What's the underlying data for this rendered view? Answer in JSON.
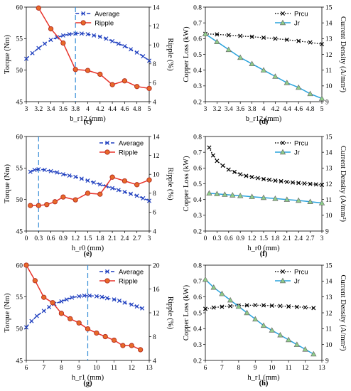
{
  "chart_data": [
    {
      "type": "line",
      "caption": "(c)",
      "xlabel": "b_r12 (mm)",
      "ylabel": "Torque (Nm)",
      "y2label": "Ripple (%)",
      "xlim": [
        3,
        5
      ],
      "ylim": [
        45,
        60
      ],
      "y2lim": [
        4,
        14
      ],
      "xticks": [
        3,
        3.2,
        3.4,
        3.6,
        3.8,
        4,
        4.2,
        4.4,
        4.6,
        4.8,
        5
      ],
      "yticks": [
        45,
        50,
        55,
        60
      ],
      "y2ticks": [
        4,
        6,
        8,
        10,
        12,
        14
      ],
      "vline": 3.8,
      "legend": "top-center",
      "series": [
        {
          "name": "Average",
          "axis": "left",
          "style": "dash-x",
          "color": "#1f3fbf",
          "x": [
            3,
            3.1,
            3.2,
            3.3,
            3.4,
            3.5,
            3.6,
            3.7,
            3.8,
            3.9,
            4,
            4.1,
            4.2,
            4.3,
            4.4,
            4.5,
            4.6,
            4.7,
            4.8,
            4.9,
            5
          ],
          "y": [
            51.8,
            52.7,
            53.5,
            54.2,
            54.8,
            55.2,
            55.5,
            55.7,
            55.8,
            55.8,
            55.7,
            55.5,
            55.3,
            55.0,
            54.6,
            54.2,
            53.8,
            53.3,
            52.8,
            52.2,
            51.5
          ]
        },
        {
          "name": "Ripple",
          "axis": "right",
          "style": "solid-o",
          "color": "#e8332a",
          "x": [
            3.2,
            3.4,
            3.6,
            3.8,
            4,
            4.2,
            4.4,
            4.6,
            4.8,
            5
          ],
          "y": [
            13.9,
            11.7,
            10.2,
            7.4,
            7.3,
            6.9,
            5.8,
            6.2,
            5.6,
            5.4
          ]
        }
      ]
    },
    {
      "type": "line",
      "caption": "(d)",
      "xlabel": "b_r12 (mm)",
      "ylabel": "Copper Loss (kW)",
      "y2label": "Current Density (A/mm²)",
      "xlim": [
        3,
        5
      ],
      "ylim": [
        0.2,
        0.8
      ],
      "y2lim": [
        9,
        15
      ],
      "xticks": [
        3,
        3.2,
        3.4,
        3.6,
        3.8,
        4,
        4.2,
        4.4,
        4.6,
        4.8,
        5
      ],
      "yticks": [
        0.2,
        0.3,
        0.4,
        0.5,
        0.6,
        0.7,
        0.8
      ],
      "y2ticks": [
        9,
        10,
        11,
        12,
        13,
        14,
        15
      ],
      "legend": "top-right",
      "series": [
        {
          "name": "Prcu",
          "axis": "left",
          "style": "dot-x",
          "color": "#000000",
          "x": [
            3,
            3.2,
            3.4,
            3.6,
            3.8,
            4,
            4.2,
            4.4,
            4.6,
            4.8,
            5
          ],
          "y": [
            0.63,
            0.627,
            0.622,
            0.617,
            0.612,
            0.606,
            0.6,
            0.593,
            0.585,
            0.576,
            0.565
          ]
        },
        {
          "name": "Jr",
          "axis": "right",
          "style": "solid-tri",
          "color": "#29a3dc",
          "x": [
            3,
            3.2,
            3.4,
            3.6,
            3.8,
            4,
            4.2,
            4.4,
            4.6,
            4.8,
            5
          ],
          "y": [
            13.3,
            12.8,
            12.3,
            11.8,
            11.4,
            11.0,
            10.6,
            10.2,
            9.9,
            9.5,
            9.2
          ]
        }
      ]
    },
    {
      "type": "line",
      "caption": "(e)",
      "xlabel": "h_r0 (mm)",
      "ylabel": "Torque (Nm)",
      "y2label": "Ripple (%)",
      "xlim": [
        0,
        3
      ],
      "ylim": [
        45,
        60
      ],
      "y2lim": [
        4,
        14
      ],
      "xticks": [
        0,
        0.3,
        0.6,
        0.9,
        1.2,
        1.5,
        1.8,
        2.1,
        2.4,
        2.7,
        3
      ],
      "xticklabels": [
        "0",
        "0.3",
        "0.6",
        "0.9",
        "1.2",
        "1.5",
        "1.8",
        "2.1",
        "2.4",
        "2.7",
        "3"
      ],
      "yticks": [
        45,
        50,
        55,
        60
      ],
      "y2ticks": [
        4,
        6,
        8,
        10,
        12,
        14
      ],
      "vline": 0.3,
      "legend": "top-right",
      "series": [
        {
          "name": "Average",
          "axis": "left",
          "style": "dash-x",
          "color": "#1f3fbf",
          "x": [
            0.1,
            0.2,
            0.3,
            0.45,
            0.6,
            0.75,
            0.9,
            1.05,
            1.2,
            1.35,
            1.5,
            1.65,
            1.8,
            1.95,
            2.1,
            2.25,
            2.4,
            2.55,
            2.7,
            2.85,
            3
          ],
          "y": [
            54.4,
            54.7,
            54.8,
            54.7,
            54.5,
            54.3,
            54.0,
            53.8,
            53.6,
            53.3,
            53.0,
            52.7,
            52.4,
            52.1,
            51.8,
            51.5,
            51.2,
            50.9,
            50.6,
            50.2,
            49.8
          ]
        },
        {
          "name": "Ripple",
          "axis": "right",
          "style": "solid-o",
          "color": "#e8332a",
          "x": [
            0.1,
            0.3,
            0.5,
            0.7,
            0.9,
            1.2,
            1.5,
            1.8,
            2.1,
            2.4,
            2.7,
            3
          ],
          "y": [
            6.7,
            6.7,
            6.8,
            7.1,
            7.6,
            7.3,
            8.0,
            7.9,
            9.7,
            9.3,
            8.9,
            9.4
          ]
        }
      ]
    },
    {
      "type": "line",
      "caption": "(f)",
      "xlabel": "h_r0 (mm)",
      "ylabel": "Copper Loss (kW)",
      "y2label": "Current Density (A/mm²)",
      "xlim": [
        0,
        3
      ],
      "ylim": [
        0.2,
        0.8
      ],
      "y2lim": [
        9,
        15
      ],
      "xticks": [
        0,
        0.3,
        0.6,
        0.9,
        1.2,
        1.5,
        1.8,
        2.1,
        2.4,
        2.7,
        3
      ],
      "xticklabels": [
        "0",
        "0.3",
        "0.6",
        "0.9",
        "1.2",
        "1.5",
        "1.8",
        "2.1",
        "2.4",
        "2.7",
        "3"
      ],
      "yticks": [
        0.2,
        0.3,
        0.4,
        0.5,
        0.6,
        0.7,
        0.8
      ],
      "y2ticks": [
        9,
        10,
        11,
        12,
        13,
        14,
        15
      ],
      "legend": "top-right",
      "series": [
        {
          "name": "Prcu",
          "axis": "left",
          "style": "dot-x",
          "color": "#000000",
          "x": [
            0.1,
            0.2,
            0.3,
            0.45,
            0.6,
            0.75,
            0.9,
            1.05,
            1.2,
            1.35,
            1.5,
            1.65,
            1.8,
            1.95,
            2.1,
            2.25,
            2.4,
            2.55,
            2.7,
            2.85,
            3
          ],
          "y": [
            0.73,
            0.68,
            0.645,
            0.615,
            0.59,
            0.575,
            0.56,
            0.55,
            0.543,
            0.536,
            0.53,
            0.525,
            0.52,
            0.516,
            0.512,
            0.508,
            0.505,
            0.502,
            0.499,
            0.496,
            0.493
          ]
        },
        {
          "name": "Jr",
          "axis": "right",
          "style": "solid-tri",
          "color": "#29a3dc",
          "x": [
            0.1,
            0.3,
            0.5,
            0.7,
            0.9,
            1.2,
            1.5,
            1.8,
            2.1,
            2.4,
            2.7,
            3
          ],
          "y": [
            11.4,
            11.36,
            11.32,
            11.28,
            11.24,
            11.18,
            11.12,
            11.06,
            11.0,
            10.94,
            10.86,
            10.78
          ]
        }
      ]
    },
    {
      "type": "line",
      "caption": "(g)",
      "xlabel": "h_r1 (mm)",
      "ylabel": "Torque (Nm)",
      "y2label": "Ripple (%)",
      "xlim": [
        6,
        13
      ],
      "ylim": [
        45,
        60
      ],
      "y2lim": [
        4,
        20
      ],
      "xticks": [
        6,
        7,
        8,
        9,
        10,
        11,
        12,
        13
      ],
      "yticks": [
        45,
        50,
        55,
        60
      ],
      "y2ticks": [
        4,
        8,
        12,
        16,
        20
      ],
      "vline": 9.5,
      "legend": "top-right",
      "series": [
        {
          "name": "Average",
          "axis": "left",
          "style": "dash-x",
          "color": "#1f3fbf",
          "x": [
            6,
            6.3,
            6.6,
            7,
            7.3,
            7.6,
            8,
            8.3,
            8.6,
            9,
            9.3,
            9.6,
            10,
            10.3,
            10.6,
            11,
            11.3,
            11.6,
            12,
            12.3,
            12.6
          ],
          "y": [
            50.2,
            51.2,
            52.0,
            52.8,
            53.4,
            53.9,
            54.3,
            54.6,
            54.9,
            55.1,
            55.2,
            55.2,
            55.1,
            55.0,
            54.8,
            54.6,
            54.4,
            54.1,
            53.8,
            53.5,
            53.2
          ]
        },
        {
          "name": "Ripple",
          "axis": "right",
          "style": "solid-o",
          "color": "#e8332a",
          "x": [
            6,
            6.5,
            7,
            7.5,
            8,
            8.5,
            9,
            9.5,
            10,
            10.5,
            11,
            11.5,
            12,
            12.5
          ],
          "y": [
            20.0,
            17.4,
            14.6,
            13.7,
            11.9,
            11.0,
            10.3,
            9.3,
            8.6,
            8.0,
            7.4,
            6.5,
            6.5,
            5.8
          ]
        }
      ]
    },
    {
      "type": "line",
      "caption": "(h)",
      "xlabel": "h_r1 (mm)",
      "ylabel": "Copper Loss (kW)",
      "y2label": "Current Density (A/mm²)",
      "xlim": [
        6,
        13
      ],
      "ylim": [
        0.2,
        0.8
      ],
      "y2lim": [
        9,
        15
      ],
      "xticks": [
        6,
        7,
        8,
        9,
        10,
        11,
        12,
        13
      ],
      "yticks": [
        0.2,
        0.3,
        0.4,
        0.5,
        0.6,
        0.7,
        0.8
      ],
      "y2ticks": [
        9,
        10,
        11,
        12,
        13,
        14,
        15
      ],
      "legend": "top-right",
      "series": [
        {
          "name": "Prcu",
          "axis": "left",
          "style": "dot-x",
          "color": "#000000",
          "x": [
            6,
            6.5,
            7,
            7.5,
            8,
            8.5,
            9,
            9.5,
            10,
            10.5,
            11,
            11.5,
            12,
            12.5
          ],
          "y": [
            0.525,
            0.533,
            0.538,
            0.542,
            0.545,
            0.547,
            0.548,
            0.547,
            0.545,
            0.543,
            0.54,
            0.537,
            0.534,
            0.53
          ]
        },
        {
          "name": "Jr",
          "axis": "right",
          "style": "solid-tri",
          "color": "#29a3dc",
          "x": [
            6,
            6.5,
            7,
            7.5,
            8,
            8.5,
            9,
            9.5,
            10,
            10.5,
            11,
            11.5,
            12,
            12.5
          ],
          "y": [
            14.1,
            13.6,
            13.2,
            12.8,
            12.4,
            12.0,
            11.6,
            11.2,
            10.9,
            10.6,
            10.3,
            10.0,
            9.7,
            9.4
          ]
        }
      ]
    }
  ]
}
